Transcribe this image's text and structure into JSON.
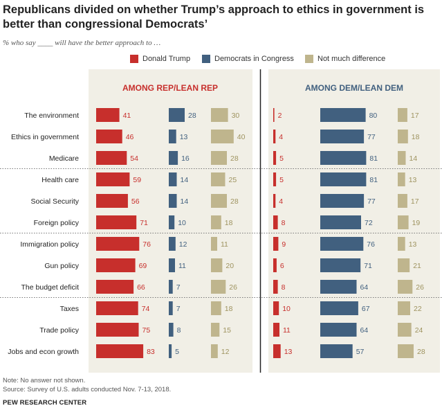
{
  "title": "Republicans divided on whether Trump’s approach to ethics in government is better than congressional Democrats’",
  "subtitle": "% who say ____ will have the better approach to …",
  "legend": [
    {
      "label": "Donald Trump",
      "color": "#c72f2c"
    },
    {
      "label": "Democrats in Congress",
      "color": "#41607f"
    },
    {
      "label": "Not much difference",
      "color": "#bfb58d"
    }
  ],
  "colors": {
    "trump": "#c72f2c",
    "dem": "#41607f",
    "diff": "#bfb58d",
    "panel": "#f1efe6"
  },
  "chart_data": {
    "type": "bar",
    "title": "Republicans divided on whether Trump’s approach to ethics in government is better than congressional Democrats’",
    "categories": [
      "The environment",
      "Ethics in government",
      "Medicare",
      "Health care",
      "Social Security",
      "Foreign policy",
      "Immigration policy",
      "Gun policy",
      "The budget deficit",
      "Taxes",
      "Trade policy",
      "Jobs and econ growth"
    ],
    "groups": [
      {
        "name": "AMONG REP/LEAN REP",
        "series": [
          {
            "name": "Donald Trump",
            "values": [
              41,
              46,
              54,
              59,
              56,
              71,
              76,
              69,
              66,
              74,
              75,
              83
            ]
          },
          {
            "name": "Democrats in Congress",
            "values": [
              28,
              13,
              16,
              14,
              14,
              10,
              12,
              11,
              7,
              7,
              8,
              5
            ]
          },
          {
            "name": "Not much difference",
            "values": [
              30,
              40,
              28,
              25,
              28,
              18,
              11,
              20,
              26,
              18,
              15,
              12
            ]
          }
        ]
      },
      {
        "name": "AMONG DEM/LEAN DEM",
        "series": [
          {
            "name": "Donald Trump",
            "values": [
              2,
              4,
              5,
              5,
              4,
              8,
              9,
              6,
              8,
              10,
              11,
              13
            ]
          },
          {
            "name": "Democrats in Congress",
            "values": [
              80,
              77,
              81,
              81,
              77,
              72,
              76,
              71,
              64,
              67,
              64,
              57
            ]
          },
          {
            "name": "Not much difference",
            "values": [
              17,
              18,
              14,
              13,
              17,
              19,
              13,
              21,
              26,
              22,
              24,
              28
            ]
          }
        ]
      }
    ],
    "separators_after": [
      2,
      5,
      8
    ]
  },
  "notes": {
    "note": "Note: No answer not shown.",
    "source": "Source: Survey of U.S. adults conducted Nov. 7-13, 2018.",
    "brand": "PEW RESEARCH CENTER"
  }
}
